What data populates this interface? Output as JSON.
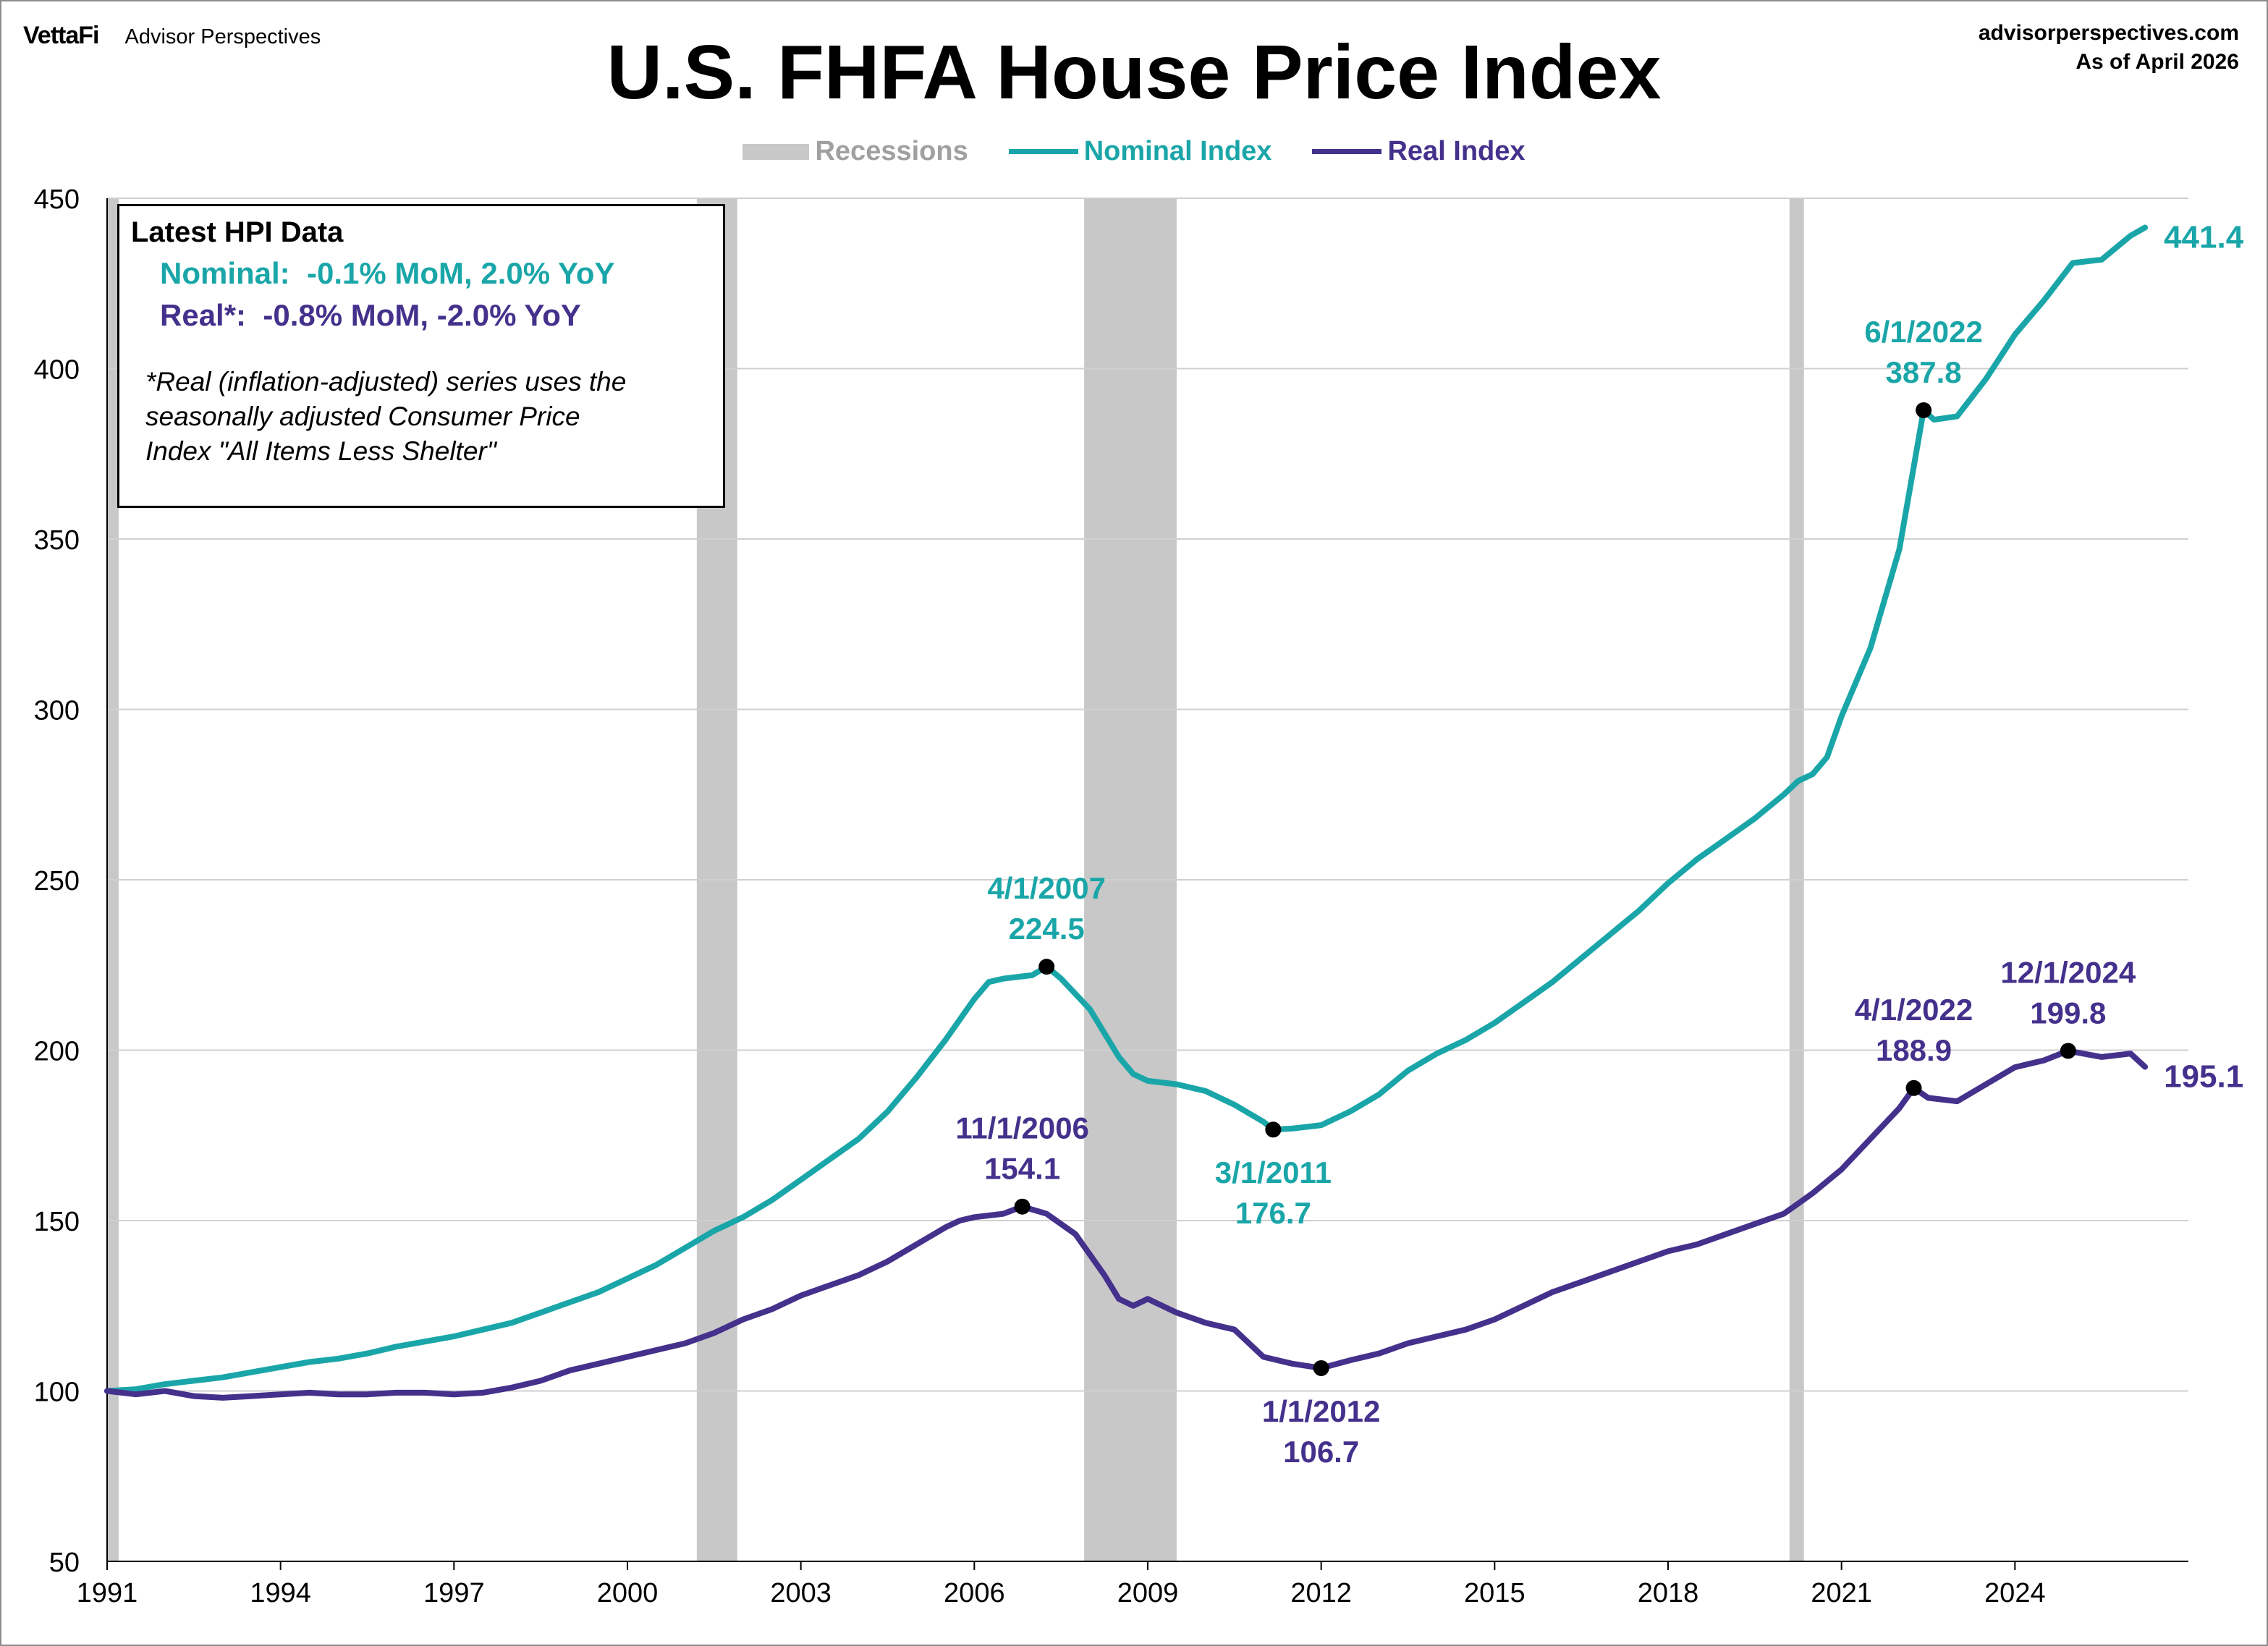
{
  "header": {
    "brand_logo": "VettaFi",
    "brand_name": "Advisor Perspectives",
    "title": "U.S. FHFA House Price Index",
    "site": "advisorperspectives.com",
    "as_of": "As of April 2026"
  },
  "legend": {
    "recessions": "Recessions",
    "nominal": "Nominal Index",
    "real": "Real Index"
  },
  "infobox": {
    "title": "Latest HPI Data",
    "nominal_line": "Nominal:  -0.1% MoM, 2.0% YoY",
    "real_line": "Real*:  -0.8% MoM, -2.0% YoY",
    "note": "*Real (inflation-adjusted) series uses the\nseasonally adjusted Consumer Price\nIndex \"All Items Less Shelter\""
  },
  "colors": {
    "nominal": "#1aa6a8",
    "real": "#44318c",
    "recession": "#c8c8c8",
    "grid": "#d0d0d0",
    "axis": "#000000"
  },
  "chart_data": {
    "type": "line",
    "title": "U.S. FHFA House Price Index",
    "xlabel": "",
    "ylabel": "",
    "xlim": [
      1991,
      2027
    ],
    "ylim": [
      50,
      450
    ],
    "grid": true,
    "legend_position": "top-center",
    "x_ticks": [
      "1991",
      "1994",
      "1997",
      "2000",
      "2003",
      "2006",
      "2009",
      "2012",
      "2015",
      "2018",
      "2021",
      "2024"
    ],
    "y_ticks": [
      "50",
      "100",
      "150",
      "200",
      "250",
      "300",
      "350",
      "400",
      "450"
    ],
    "recessions": [
      [
        1990.6,
        1991.2
      ],
      [
        2001.2,
        2001.9
      ],
      [
        2007.9,
        2009.5
      ],
      [
        2020.1,
        2020.35
      ]
    ],
    "series": [
      {
        "name": "Nominal Index",
        "color": "#1aa6a8",
        "points": [
          [
            1991.0,
            100
          ],
          [
            1991.5,
            100.5
          ],
          [
            1992.0,
            102
          ],
          [
            1992.5,
            103
          ],
          [
            1993.0,
            104
          ],
          [
            1993.5,
            105.5
          ],
          [
            1994.0,
            107
          ],
          [
            1994.5,
            108.5
          ],
          [
            1995.0,
            109.5
          ],
          [
            1995.5,
            111
          ],
          [
            1996.0,
            113
          ],
          [
            1996.5,
            114.5
          ],
          [
            1997.0,
            116
          ],
          [
            1997.5,
            118
          ],
          [
            1998.0,
            120
          ],
          [
            1998.5,
            123
          ],
          [
            1999.0,
            126
          ],
          [
            1999.5,
            129
          ],
          [
            2000.0,
            133
          ],
          [
            2000.5,
            137
          ],
          [
            2001.0,
            142
          ],
          [
            2001.5,
            147
          ],
          [
            2002.0,
            151
          ],
          [
            2002.5,
            156
          ],
          [
            2003.0,
            162
          ],
          [
            2003.5,
            168
          ],
          [
            2004.0,
            174
          ],
          [
            2004.5,
            182
          ],
          [
            2005.0,
            192
          ],
          [
            2005.5,
            203
          ],
          [
            2006.0,
            215
          ],
          [
            2006.25,
            220
          ],
          [
            2006.5,
            221
          ],
          [
            2007.0,
            222
          ],
          [
            2007.25,
            224.5
          ],
          [
            2007.5,
            221
          ],
          [
            2008.0,
            212
          ],
          [
            2008.5,
            198
          ],
          [
            2008.75,
            193
          ],
          [
            2009.0,
            191
          ],
          [
            2009.5,
            190
          ],
          [
            2010.0,
            188
          ],
          [
            2010.5,
            184
          ],
          [
            2011.0,
            179
          ],
          [
            2011.17,
            176.7
          ],
          [
            2011.5,
            177
          ],
          [
            2012.0,
            178
          ],
          [
            2012.5,
            182
          ],
          [
            2013.0,
            187
          ],
          [
            2013.5,
            194
          ],
          [
            2014.0,
            199
          ],
          [
            2014.5,
            203
          ],
          [
            2015.0,
            208
          ],
          [
            2015.5,
            214
          ],
          [
            2016.0,
            220
          ],
          [
            2016.5,
            227
          ],
          [
            2017.0,
            234
          ],
          [
            2017.5,
            241
          ],
          [
            2018.0,
            249
          ],
          [
            2018.5,
            256
          ],
          [
            2019.0,
            262
          ],
          [
            2019.5,
            268
          ],
          [
            2020.0,
            275
          ],
          [
            2020.25,
            279
          ],
          [
            2020.5,
            281
          ],
          [
            2020.75,
            286
          ],
          [
            2021.0,
            298
          ],
          [
            2021.5,
            318
          ],
          [
            2022.0,
            347
          ],
          [
            2022.42,
            387.8
          ],
          [
            2022.6,
            385
          ],
          [
            2023.0,
            386
          ],
          [
            2023.5,
            397
          ],
          [
            2024.0,
            410
          ],
          [
            2024.5,
            420
          ],
          [
            2025.0,
            431
          ],
          [
            2025.5,
            432
          ],
          [
            2026.0,
            439
          ],
          [
            2026.25,
            441.4
          ]
        ],
        "last_label": "441.4"
      },
      {
        "name": "Real Index",
        "color": "#44318c",
        "points": [
          [
            1991.0,
            100
          ],
          [
            1991.5,
            99
          ],
          [
            1992.0,
            100
          ],
          [
            1992.5,
            98.5
          ],
          [
            1993.0,
            98
          ],
          [
            1993.5,
            98.5
          ],
          [
            1994.0,
            99
          ],
          [
            1994.5,
            99.5
          ],
          [
            1995.0,
            99
          ],
          [
            1995.5,
            99
          ],
          [
            1996.0,
            99.5
          ],
          [
            1996.5,
            99.5
          ],
          [
            1997.0,
            99
          ],
          [
            1997.5,
            99.5
          ],
          [
            1998.0,
            101
          ],
          [
            1998.5,
            103
          ],
          [
            1999.0,
            106
          ],
          [
            1999.5,
            108
          ],
          [
            2000.0,
            110
          ],
          [
            2000.5,
            112
          ],
          [
            2001.0,
            114
          ],
          [
            2001.5,
            117
          ],
          [
            2002.0,
            121
          ],
          [
            2002.5,
            124
          ],
          [
            2003.0,
            128
          ],
          [
            2003.5,
            131
          ],
          [
            2004.0,
            134
          ],
          [
            2004.5,
            138
          ],
          [
            2005.0,
            143
          ],
          [
            2005.5,
            148
          ],
          [
            2005.75,
            150
          ],
          [
            2006.0,
            151
          ],
          [
            2006.5,
            152
          ],
          [
            2006.83,
            154.1
          ],
          [
            2007.25,
            152
          ],
          [
            2007.75,
            146
          ],
          [
            2008.25,
            134
          ],
          [
            2008.5,
            127
          ],
          [
            2008.75,
            125
          ],
          [
            2009.0,
            127
          ],
          [
            2009.5,
            123
          ],
          [
            2010.0,
            120
          ],
          [
            2010.5,
            118
          ],
          [
            2011.0,
            110
          ],
          [
            2011.5,
            108
          ],
          [
            2012.0,
            106.7
          ],
          [
            2012.5,
            109
          ],
          [
            2013.0,
            111
          ],
          [
            2013.5,
            114
          ],
          [
            2014.0,
            116
          ],
          [
            2014.5,
            118
          ],
          [
            2015.0,
            121
          ],
          [
            2015.5,
            125
          ],
          [
            2016.0,
            129
          ],
          [
            2016.5,
            132
          ],
          [
            2017.0,
            135
          ],
          [
            2017.5,
            138
          ],
          [
            2018.0,
            141
          ],
          [
            2018.5,
            143
          ],
          [
            2019.0,
            146
          ],
          [
            2019.5,
            149
          ],
          [
            2020.0,
            152
          ],
          [
            2020.25,
            155
          ],
          [
            2020.5,
            158
          ],
          [
            2021.0,
            165
          ],
          [
            2021.5,
            174
          ],
          [
            2022.0,
            183
          ],
          [
            2022.25,
            188.9
          ],
          [
            2022.5,
            186
          ],
          [
            2023.0,
            185
          ],
          [
            2023.5,
            190
          ],
          [
            2024.0,
            195
          ],
          [
            2024.5,
            197
          ],
          [
            2024.92,
            199.8
          ],
          [
            2025.5,
            198
          ],
          [
            2026.0,
            199
          ],
          [
            2026.25,
            195.1
          ]
        ],
        "last_label": "195.1"
      }
    ],
    "annotations": [
      {
        "series": "Nominal Index",
        "x": 2007.25,
        "y": 224.5,
        "date": "4/1/2007",
        "value": "224.5",
        "pos": "above"
      },
      {
        "series": "Nominal Index",
        "x": 2011.17,
        "y": 176.7,
        "date": "3/1/2011",
        "value": "176.7",
        "pos": "below"
      },
      {
        "series": "Nominal Index",
        "x": 2022.42,
        "y": 387.8,
        "date": "6/1/2022",
        "value": "387.8",
        "pos": "above"
      },
      {
        "series": "Real Index",
        "x": 2006.83,
        "y": 154.1,
        "date": "11/1/2006",
        "value": "154.1",
        "pos": "above"
      },
      {
        "series": "Real Index",
        "x": 2012.0,
        "y": 106.7,
        "date": "1/1/2012",
        "value": "106.7",
        "pos": "below"
      },
      {
        "series": "Real Index",
        "x": 2022.25,
        "y": 188.9,
        "date": "4/1/2022",
        "value": "188.9",
        "pos": "above"
      },
      {
        "series": "Real Index",
        "x": 2024.92,
        "y": 199.8,
        "date": "12/1/2024",
        "value": "199.8",
        "pos": "above"
      }
    ]
  }
}
